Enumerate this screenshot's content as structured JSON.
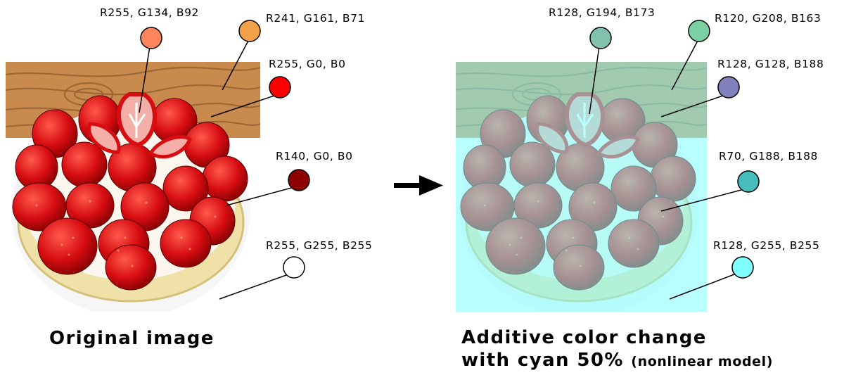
{
  "left": {
    "caption": "Original image",
    "samples": [
      {
        "label": "R255, G134, B92",
        "color": "#ff865c"
      },
      {
        "label": "R241, G161, B71",
        "color": "#f1a147"
      },
      {
        "label": "R255, G0, B0",
        "color": "#ff0000"
      },
      {
        "label": "R140, G0, B0",
        "color": "#8c0000"
      },
      {
        "label": "R255, G255, B255",
        "color": "#ffffff"
      }
    ]
  },
  "right": {
    "caption_line1": "Additive color change",
    "caption_line2": "with cyan 50%",
    "caption_note": "(nonlinear model)",
    "samples": [
      {
        "label": "R128, G194, B173",
        "color": "#80c2ad"
      },
      {
        "label": "R120, G208, B163",
        "color": "#78d0a3"
      },
      {
        "label": "R128, G128, B188",
        "color": "#8080bc"
      },
      {
        "label": "R70, G188, B188",
        "color": "#46bcbc"
      },
      {
        "label": "R128, G255, B255",
        "color": "#80ffff"
      }
    ]
  },
  "colors": {
    "wood": "#c98a4e",
    "wood_grain": "#8a5a2a",
    "plate": "#f6f6f6",
    "crust": "#efe1a8",
    "strawberry": "#d70d12",
    "strawberry_dark": "#8c0000",
    "cut_strawberry": "#f4b0a8",
    "cyan_overlay": "#80ffff",
    "cyan_overlay_opacity": 0.55,
    "arrow": "#000000"
  }
}
